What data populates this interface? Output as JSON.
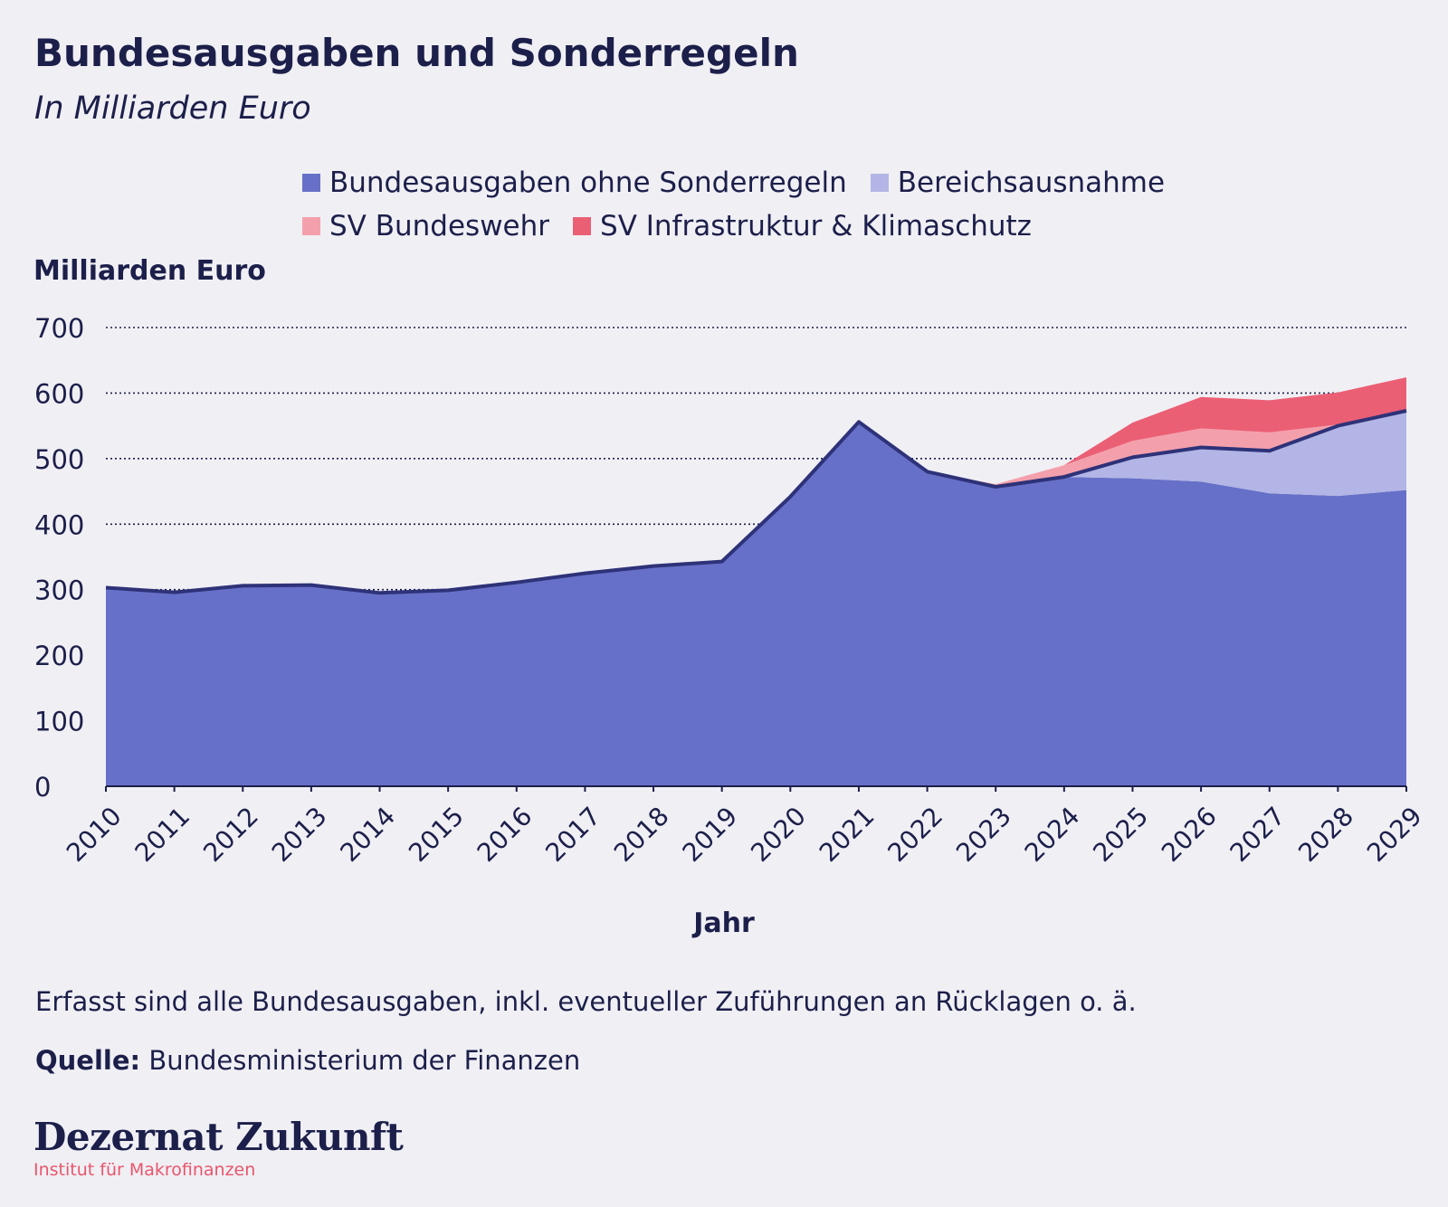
{
  "chart_data": {
    "type": "area",
    "title": "Bundesausgaben und Sonderregeln",
    "subtitle": "In Milliarden Euro",
    "ylabel": "Milliarden Euro",
    "xlabel": "Jahr",
    "ylim": [
      0,
      700
    ],
    "yticks": [
      "0",
      "100",
      "200",
      "300",
      "400",
      "500",
      "600",
      "700"
    ],
    "grid": true,
    "stacked": true,
    "legend_position": "top",
    "categories": [
      "2010",
      "2011",
      "2012",
      "2013",
      "2014",
      "2015",
      "2016",
      "2017",
      "2018",
      "2019",
      "2020",
      "2021",
      "2022",
      "2023",
      "2024",
      "2025",
      "2026",
      "2027",
      "2028",
      "2029"
    ],
    "series": [
      {
        "name": "Bundesausgaben ohne Sonderregeln",
        "color": "#6770c8",
        "values": [
          303,
          296,
          306,
          307,
          295,
          299,
          311,
          325,
          336,
          343,
          442,
          556,
          480,
          457,
          472,
          470,
          465,
          447,
          443,
          452
        ]
      },
      {
        "name": "Bereichsausnahme",
        "color": "#b2b5e5",
        "values": [
          0,
          0,
          0,
          0,
          0,
          0,
          0,
          0,
          0,
          0,
          0,
          0,
          0,
          0,
          0,
          32,
          52,
          65,
          107,
          121
        ]
      },
      {
        "name": "SV Bundeswehr",
        "color": "#f4a0ac",
        "values": [
          0,
          0,
          0,
          0,
          0,
          0,
          0,
          0,
          0,
          0,
          0,
          0,
          0,
          4,
          18,
          25,
          29,
          28,
          2,
          0
        ]
      },
      {
        "name": "SV Infrastruktur & Klimaschutz",
        "color": "#eb5f75",
        "values": [
          0,
          0,
          0,
          0,
          0,
          0,
          0,
          0,
          0,
          0,
          0,
          0,
          0,
          0,
          0,
          28,
          48,
          49,
          49,
          51
        ]
      }
    ],
    "total_line": {
      "color": "#2e3278",
      "values": [
        303,
        296,
        306,
        307,
        295,
        299,
        311,
        325,
        336,
        343,
        442,
        556,
        480,
        457,
        472,
        502,
        517,
        512,
        550,
        573
      ]
    }
  },
  "footnote": "Erfasst sind alle Bundesausgaben, inkl. eventueller Zuführungen an Rücklagen o. ä.",
  "source": {
    "label": "Quelle:",
    "text": "Bundesministerium der Finanzen"
  },
  "brand": {
    "name": "Dezernat Zukunft",
    "tagline": "Institut für Makrofinanzen"
  }
}
